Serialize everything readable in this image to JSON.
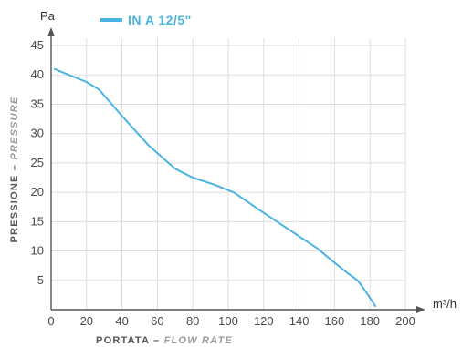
{
  "chart_data": {
    "type": "line",
    "x_unit": "m³/h",
    "y_unit": "Pa",
    "xlabel": {
      "main": "PORTATA",
      "separator": " – ",
      "translation": "FLOW RATE"
    },
    "ylabel": {
      "main": "PRESSIONE",
      "separator": " – ",
      "translation": "PRESSURE"
    },
    "xlim": [
      0,
      200
    ],
    "ylim": [
      0,
      45
    ],
    "xticks": [
      0,
      20,
      40,
      60,
      80,
      100,
      120,
      140,
      160,
      180,
      200
    ],
    "yticks": [
      5,
      10,
      15,
      20,
      25,
      30,
      35,
      40,
      45
    ],
    "grid": true,
    "legend_position": "top",
    "series": [
      {
        "name": "IN A 12/5\"",
        "color": "#4bb3e3",
        "x": [
          2,
          10,
          20,
          27,
          40,
          55,
          70,
          80,
          92,
          103,
          120,
          140,
          150,
          160,
          167,
          173,
          176,
          180,
          183
        ],
        "y": [
          41,
          40,
          38.8,
          37.5,
          33,
          28,
          24,
          22.5,
          21.3,
          20,
          16.5,
          12.5,
          10.5,
          8,
          6.3,
          5,
          3.8,
          2,
          0.6
        ]
      }
    ]
  }
}
